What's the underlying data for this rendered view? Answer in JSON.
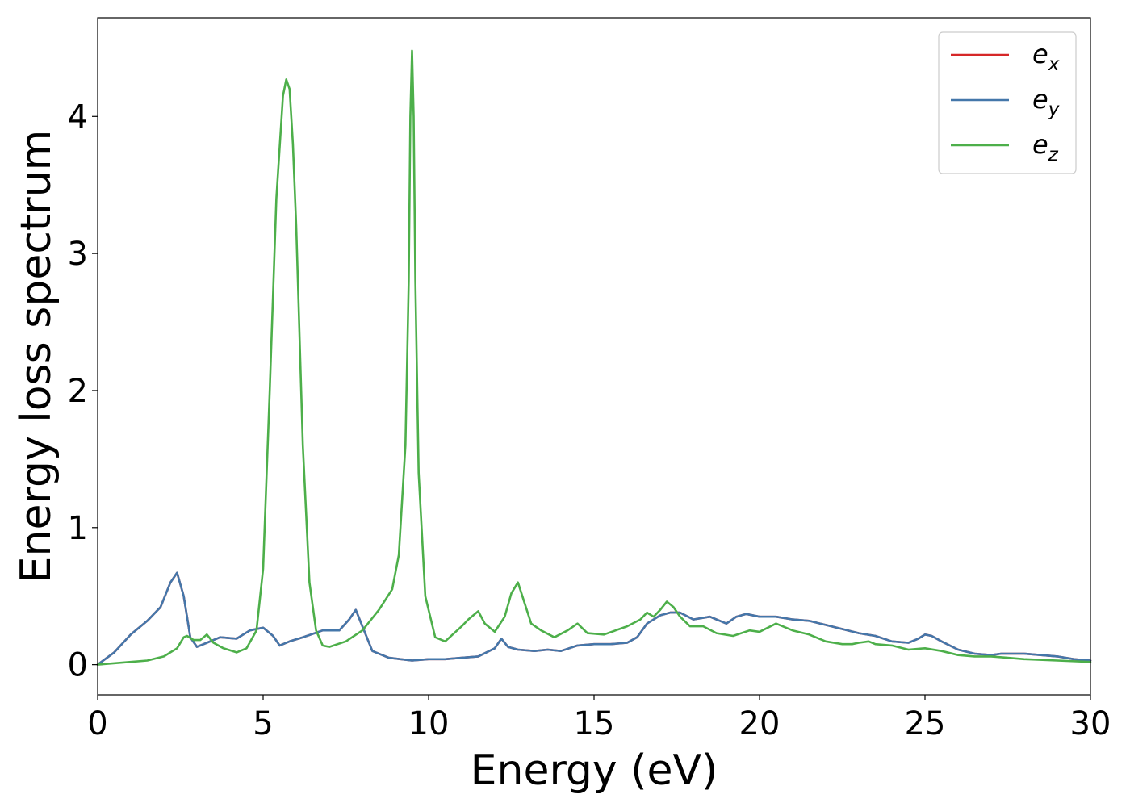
{
  "chart_data": {
    "type": "line",
    "xlabel": "Energy (eV)",
    "ylabel": "Energy loss spectrum",
    "xlim": [
      0,
      30
    ],
    "ylim": [
      -0.22,
      4.72
    ],
    "xticks": [
      0,
      5,
      10,
      15,
      20,
      25,
      30
    ],
    "yticks": [
      0,
      1,
      2,
      3,
      4
    ],
    "grid": false,
    "legend_position": "top-right",
    "series": [
      {
        "name": "e_x",
        "label_base": "e",
        "label_sub": "x",
        "color": "#d62728",
        "x": [
          0,
          0.5,
          1.0,
          1.5,
          1.9,
          2.2,
          2.4,
          2.6,
          2.8,
          3.0,
          3.3,
          3.7,
          4.2,
          4.6,
          5.0,
          5.3,
          5.5,
          5.8,
          6.2,
          6.8,
          7.3,
          7.6,
          7.8,
          8.0,
          8.3,
          8.8,
          9.5,
          10.0,
          10.5,
          11.0,
          11.5,
          12.0,
          12.2,
          12.4,
          12.7,
          13.2,
          13.6,
          14.0,
          14.5,
          15.0,
          15.5,
          16.0,
          16.3,
          16.6,
          17.0,
          17.3,
          17.6,
          18.0,
          18.5,
          19.0,
          19.3,
          19.6,
          20.0,
          20.5,
          21.0,
          21.5,
          22.0,
          22.5,
          23.0,
          23.5,
          24.0,
          24.5,
          24.8,
          25.0,
          25.2,
          25.5,
          26.0,
          26.5,
          27.0,
          27.3,
          28.0,
          28.5,
          29.0,
          29.5,
          30.0
        ],
        "y": [
          0,
          0.09,
          0.22,
          0.32,
          0.42,
          0.6,
          0.67,
          0.5,
          0.2,
          0.13,
          0.16,
          0.2,
          0.19,
          0.25,
          0.27,
          0.21,
          0.14,
          0.17,
          0.2,
          0.25,
          0.25,
          0.33,
          0.4,
          0.28,
          0.1,
          0.05,
          0.03,
          0.04,
          0.04,
          0.05,
          0.06,
          0.12,
          0.19,
          0.13,
          0.11,
          0.1,
          0.11,
          0.1,
          0.14,
          0.15,
          0.15,
          0.16,
          0.2,
          0.3,
          0.36,
          0.38,
          0.38,
          0.33,
          0.35,
          0.3,
          0.35,
          0.37,
          0.35,
          0.35,
          0.33,
          0.32,
          0.29,
          0.26,
          0.23,
          0.21,
          0.17,
          0.16,
          0.19,
          0.22,
          0.21,
          0.17,
          0.11,
          0.08,
          0.07,
          0.08,
          0.08,
          0.07,
          0.06,
          0.04,
          0.03
        ]
      },
      {
        "name": "e_y",
        "label_base": "e",
        "label_sub": "y",
        "color": "#4477aa",
        "x": [
          0,
          0.5,
          1.0,
          1.5,
          1.9,
          2.2,
          2.4,
          2.6,
          2.8,
          3.0,
          3.3,
          3.7,
          4.2,
          4.6,
          5.0,
          5.3,
          5.5,
          5.8,
          6.2,
          6.8,
          7.3,
          7.6,
          7.8,
          8.0,
          8.3,
          8.8,
          9.5,
          10.0,
          10.5,
          11.0,
          11.5,
          12.0,
          12.2,
          12.4,
          12.7,
          13.2,
          13.6,
          14.0,
          14.5,
          15.0,
          15.5,
          16.0,
          16.3,
          16.6,
          17.0,
          17.3,
          17.6,
          18.0,
          18.5,
          19.0,
          19.3,
          19.6,
          20.0,
          20.5,
          21.0,
          21.5,
          22.0,
          22.5,
          23.0,
          23.5,
          24.0,
          24.5,
          24.8,
          25.0,
          25.2,
          25.5,
          26.0,
          26.5,
          27.0,
          27.3,
          28.0,
          28.5,
          29.0,
          29.5,
          30.0
        ],
        "y": [
          0,
          0.09,
          0.22,
          0.32,
          0.42,
          0.6,
          0.67,
          0.5,
          0.2,
          0.13,
          0.16,
          0.2,
          0.19,
          0.25,
          0.27,
          0.21,
          0.14,
          0.17,
          0.2,
          0.25,
          0.25,
          0.33,
          0.4,
          0.28,
          0.1,
          0.05,
          0.03,
          0.04,
          0.04,
          0.05,
          0.06,
          0.12,
          0.19,
          0.13,
          0.11,
          0.1,
          0.11,
          0.1,
          0.14,
          0.15,
          0.15,
          0.16,
          0.2,
          0.3,
          0.36,
          0.38,
          0.38,
          0.33,
          0.35,
          0.3,
          0.35,
          0.37,
          0.35,
          0.35,
          0.33,
          0.32,
          0.29,
          0.26,
          0.23,
          0.21,
          0.17,
          0.16,
          0.19,
          0.22,
          0.21,
          0.17,
          0.11,
          0.08,
          0.07,
          0.08,
          0.08,
          0.07,
          0.06,
          0.04,
          0.03
        ]
      },
      {
        "name": "e_z",
        "label_base": "e",
        "label_sub": "z",
        "color": "#4daf4a",
        "x": [
          0,
          1.0,
          1.5,
          2.0,
          2.4,
          2.6,
          2.7,
          2.9,
          3.1,
          3.3,
          3.5,
          3.8,
          4.2,
          4.5,
          4.8,
          5.0,
          5.2,
          5.4,
          5.6,
          5.7,
          5.8,
          5.9,
          6.0,
          6.2,
          6.4,
          6.6,
          6.8,
          7.0,
          7.5,
          8.0,
          8.5,
          8.9,
          9.1,
          9.3,
          9.4,
          9.45,
          9.5,
          9.55,
          9.6,
          9.7,
          9.9,
          10.2,
          10.5,
          11.0,
          11.2,
          11.5,
          11.7,
          12.0,
          12.3,
          12.5,
          12.7,
          12.9,
          13.1,
          13.4,
          13.8,
          14.2,
          14.5,
          14.8,
          15.3,
          16.0,
          16.4,
          16.6,
          16.8,
          17.0,
          17.2,
          17.4,
          17.6,
          17.9,
          18.3,
          18.7,
          19.2,
          19.7,
          20.0,
          20.5,
          21.0,
          21.5,
          22.0,
          22.5,
          22.8,
          23.0,
          23.3,
          23.5,
          24.0,
          24.5,
          25.0,
          25.5,
          26.0,
          26.5,
          27.0,
          27.5,
          28.0,
          29.0,
          30.0
        ],
        "y": [
          0,
          0.02,
          0.03,
          0.06,
          0.12,
          0.2,
          0.21,
          0.18,
          0.18,
          0.22,
          0.16,
          0.12,
          0.09,
          0.12,
          0.25,
          0.7,
          2.0,
          3.4,
          4.15,
          4.27,
          4.2,
          3.8,
          3.2,
          1.6,
          0.6,
          0.25,
          0.14,
          0.13,
          0.17,
          0.25,
          0.4,
          0.55,
          0.8,
          1.6,
          2.8,
          4.0,
          4.48,
          4.0,
          2.8,
          1.4,
          0.5,
          0.2,
          0.17,
          0.28,
          0.33,
          0.39,
          0.3,
          0.24,
          0.35,
          0.52,
          0.6,
          0.45,
          0.3,
          0.25,
          0.2,
          0.25,
          0.3,
          0.23,
          0.22,
          0.28,
          0.33,
          0.38,
          0.35,
          0.4,
          0.46,
          0.42,
          0.35,
          0.28,
          0.28,
          0.23,
          0.21,
          0.25,
          0.24,
          0.3,
          0.25,
          0.22,
          0.17,
          0.15,
          0.15,
          0.16,
          0.17,
          0.15,
          0.14,
          0.11,
          0.12,
          0.1,
          0.07,
          0.06,
          0.06,
          0.05,
          0.04,
          0.03,
          0.02
        ]
      }
    ]
  }
}
